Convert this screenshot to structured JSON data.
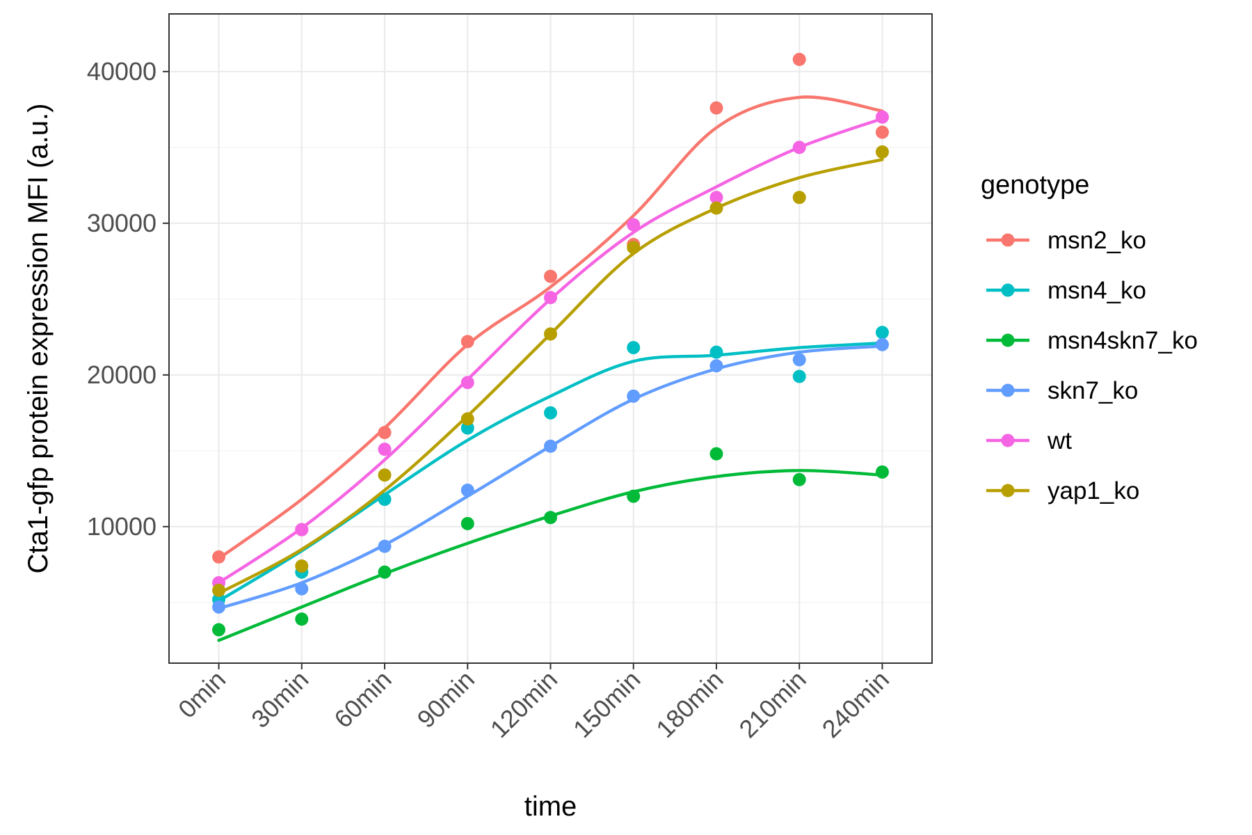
{
  "chart_data": {
    "type": "line",
    "xlabel": "time",
    "ylabel": "Cta1-gfp protein expression MFI (a.u.)",
    "categories": [
      "0min",
      "30min",
      "60min",
      "90min",
      "120min",
      "150min",
      "180min",
      "210min",
      "240min"
    ],
    "ylim": [
      1000,
      43800
    ],
    "yticks": [
      10000,
      20000,
      30000,
      40000
    ],
    "y_tick_labels": [
      "10000",
      "20000",
      "30000",
      "40000"
    ],
    "grid": true,
    "legend": {
      "title": "genotype",
      "position": "right"
    },
    "series": [
      {
        "name": "msn2_ko",
        "color": "#F8766D",
        "values": [
          8000,
          9800,
          16200,
          22200,
          26500,
          28600,
          37600,
          40800,
          36000
        ],
        "smooth": [
          7900,
          11800,
          16500,
          22000,
          25800,
          30500,
          36300,
          38300,
          37400
        ]
      },
      {
        "name": "msn4_ko",
        "color": "#00BFC4",
        "values": [
          5200,
          7000,
          11800,
          16500,
          17500,
          21800,
          21500,
          19900,
          22800
        ],
        "smooth": [
          5100,
          8400,
          12100,
          15700,
          18600,
          20900,
          21300,
          21800,
          22100
        ]
      },
      {
        "name": "msn4skn7_ko",
        "color": "#00BA38",
        "values": [
          3200,
          3900,
          7000,
          10200,
          10600,
          12000,
          14800,
          13100,
          13600
        ],
        "smooth": [
          2500,
          4700,
          6900,
          8900,
          10700,
          12300,
          13300,
          13700,
          13400
        ]
      },
      {
        "name": "skn7_ko",
        "color": "#619CFF",
        "values": [
          4700,
          5900,
          8700,
          12400,
          15300,
          18600,
          20600,
          21000,
          22000
        ],
        "smooth": [
          4600,
          6300,
          8800,
          12000,
          15300,
          18400,
          20400,
          21500,
          21900
        ]
      },
      {
        "name": "wt",
        "color": "#F564E3",
        "values": [
          6300,
          9800,
          15100,
          19500,
          25100,
          29900,
          31700,
          35000,
          37000
        ],
        "smooth": [
          6300,
          9900,
          14400,
          19700,
          25000,
          29400,
          32400,
          35000,
          36900
        ]
      },
      {
        "name": "yap1_ko",
        "color": "#B79F00",
        "values": [
          5800,
          7400,
          13400,
          17100,
          22700,
          28400,
          31000,
          31700,
          34700
        ],
        "smooth": [
          5600,
          8500,
          12400,
          17300,
          22700,
          28000,
          31000,
          33000,
          34200
        ]
      }
    ]
  }
}
